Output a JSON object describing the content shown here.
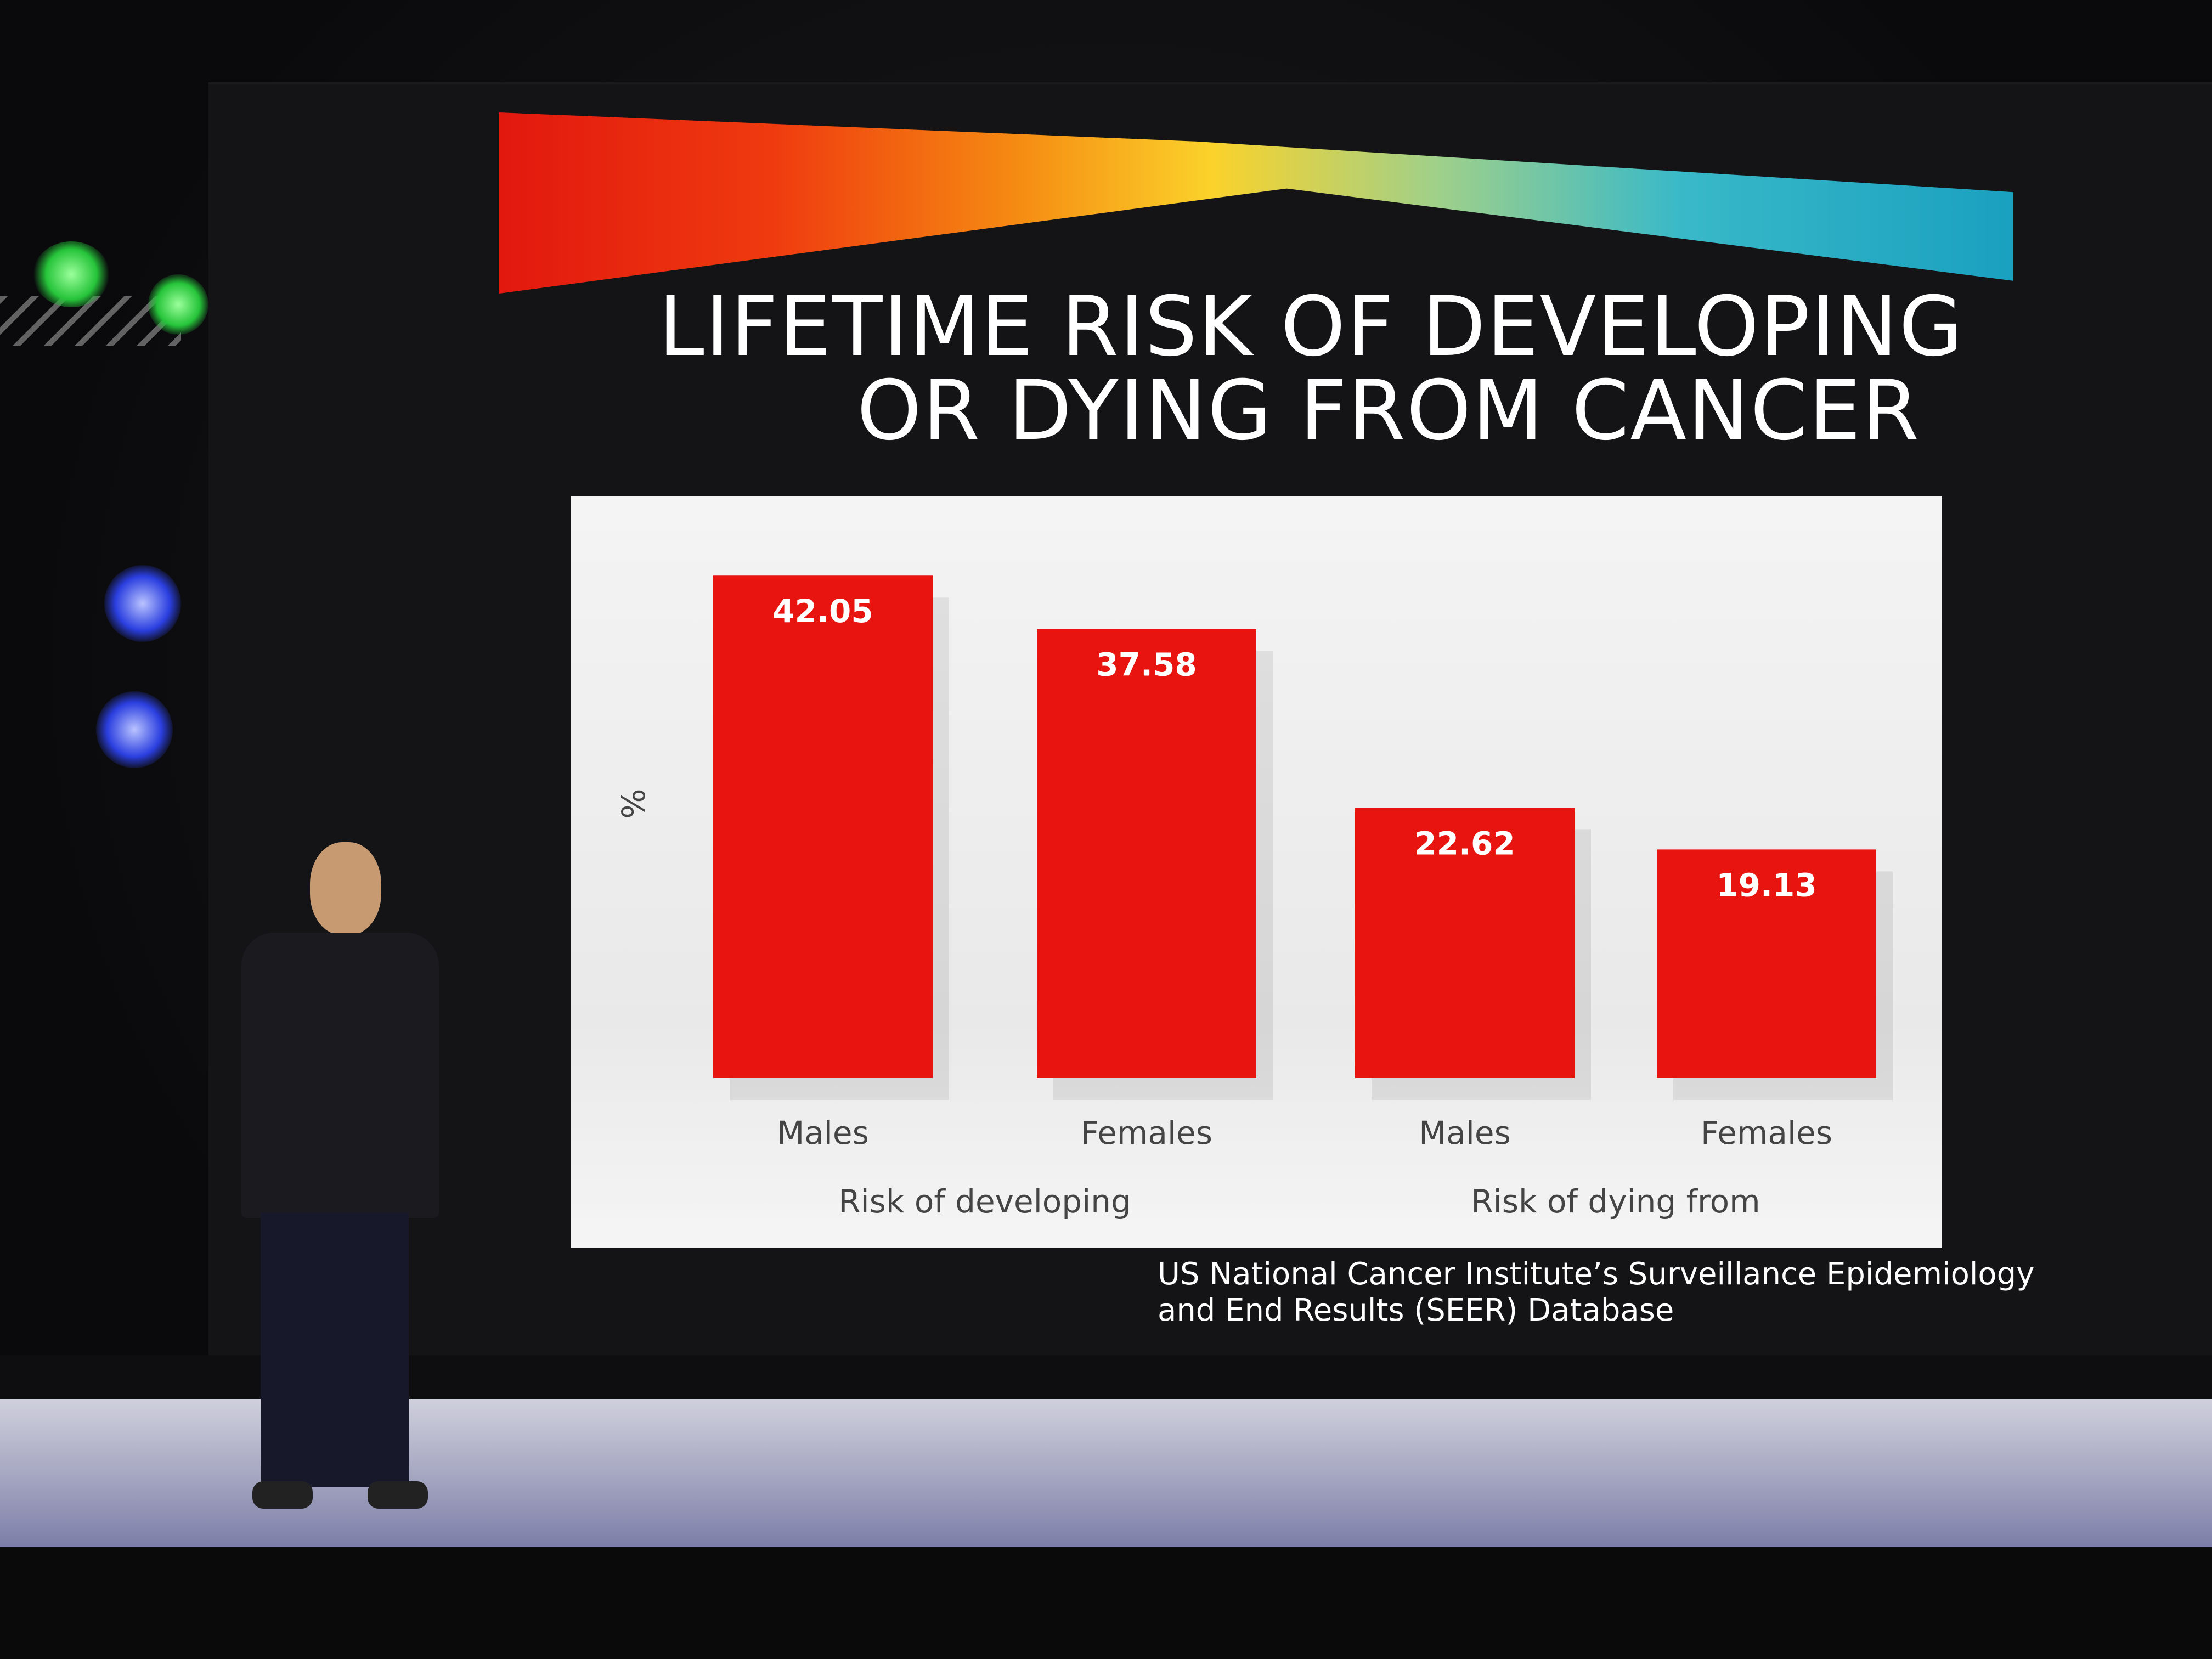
{
  "slide": {
    "title_line1": "LIFETIME RISK OF DEVELOPING",
    "title_line2": "OR DYING FROM CANCER",
    "source_line1": "US National Cancer Institute’s Surveillance Epidemiology",
    "source_line2": "and End Results (SEER) Database"
  },
  "chart_data": {
    "type": "bar",
    "title": "LIFETIME RISK OF DEVELOPING OR DYING FROM CANCER",
    "ylabel": "%",
    "xlabel": "",
    "ylim": [
      0,
      45
    ],
    "grid": false,
    "legend": "none",
    "bar_color": "#e8140f",
    "categories": [
      "Males",
      "Females",
      "Males",
      "Females"
    ],
    "groups": [
      {
        "label": "Risk of developing",
        "indices": [
          0,
          1
        ]
      },
      {
        "label": "Risk of dying from",
        "indices": [
          2,
          3
        ]
      }
    ],
    "values": [
      42.05,
      37.58,
      22.62,
      19.13
    ],
    "value_labels": [
      "42.05",
      "37.58",
      "22.62",
      "19.13"
    ]
  }
}
